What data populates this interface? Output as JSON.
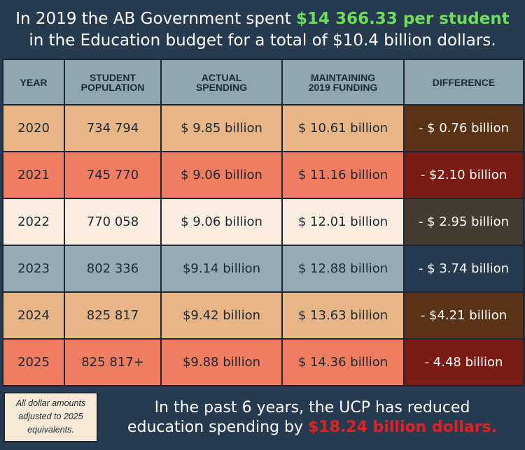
{
  "header": {
    "line1_prefix": "In 2019 the AB Government spent ",
    "line1_highlight": "$14 366.33 per student",
    "line2": "in the Education budget for a total of  $10.4 billion dollars."
  },
  "chart_data": {
    "type": "table",
    "columns": [
      "YEAR",
      "STUDENT POPULATION",
      "ACTUAL SPENDING",
      "MAINTAINING 2019 FUNDING",
      "DIFFERENCE"
    ],
    "rows": [
      {
        "year": "2020",
        "population": "734 794",
        "actual": "$ 9.85 billion",
        "maintaining": "$ 10.61 billion",
        "difference": "- $ 0.76 billion",
        "row_color": "#e8b587",
        "diff_color": "#5a3216"
      },
      {
        "year": "2021",
        "population": "745 770",
        "actual": "$ 9.06 billion",
        "maintaining": "$ 11.16 billion",
        "difference": "- $2.10 billion",
        "row_color": "#ee7d61",
        "diff_color": "#7b1c14"
      },
      {
        "year": "2022",
        "population": "770 058",
        "actual": "$ 9.06 billion",
        "maintaining": "$ 12.01 billion",
        "difference": "- $ 2.95 billion",
        "row_color": "#fbeee0",
        "diff_color": "#463b31"
      },
      {
        "year": "2023",
        "population": "802 336",
        "actual": "$9.14 billion",
        "maintaining": "$ 12.88 billion",
        "difference": "- $ 3.74 billion",
        "row_color": "#95aab4",
        "diff_color": "#263b4f"
      },
      {
        "year": "2024",
        "population": "825 817",
        "actual": "$9.42 billion",
        "maintaining": "$ 13.63 billion",
        "difference": "- $4.21 billion",
        "row_color": "#e8b587",
        "diff_color": "#5a3216"
      },
      {
        "year": "2025",
        "population": "825 817+",
        "actual": "$9.88 billion",
        "maintaining": "$ 14.36 billion",
        "difference": "- 4.48 billion",
        "row_color": "#ee7d61",
        "diff_color": "#7b1c14"
      }
    ]
  },
  "footnote": {
    "line1": "All dollar amounts",
    "line2": "adjusted to 2025",
    "line3": "equivalents."
  },
  "summary": {
    "line1": "In the past 6 years, the UCP has reduced",
    "line2_prefix": "education spending by ",
    "line2_highlight": "$18.24 billion dollars."
  }
}
